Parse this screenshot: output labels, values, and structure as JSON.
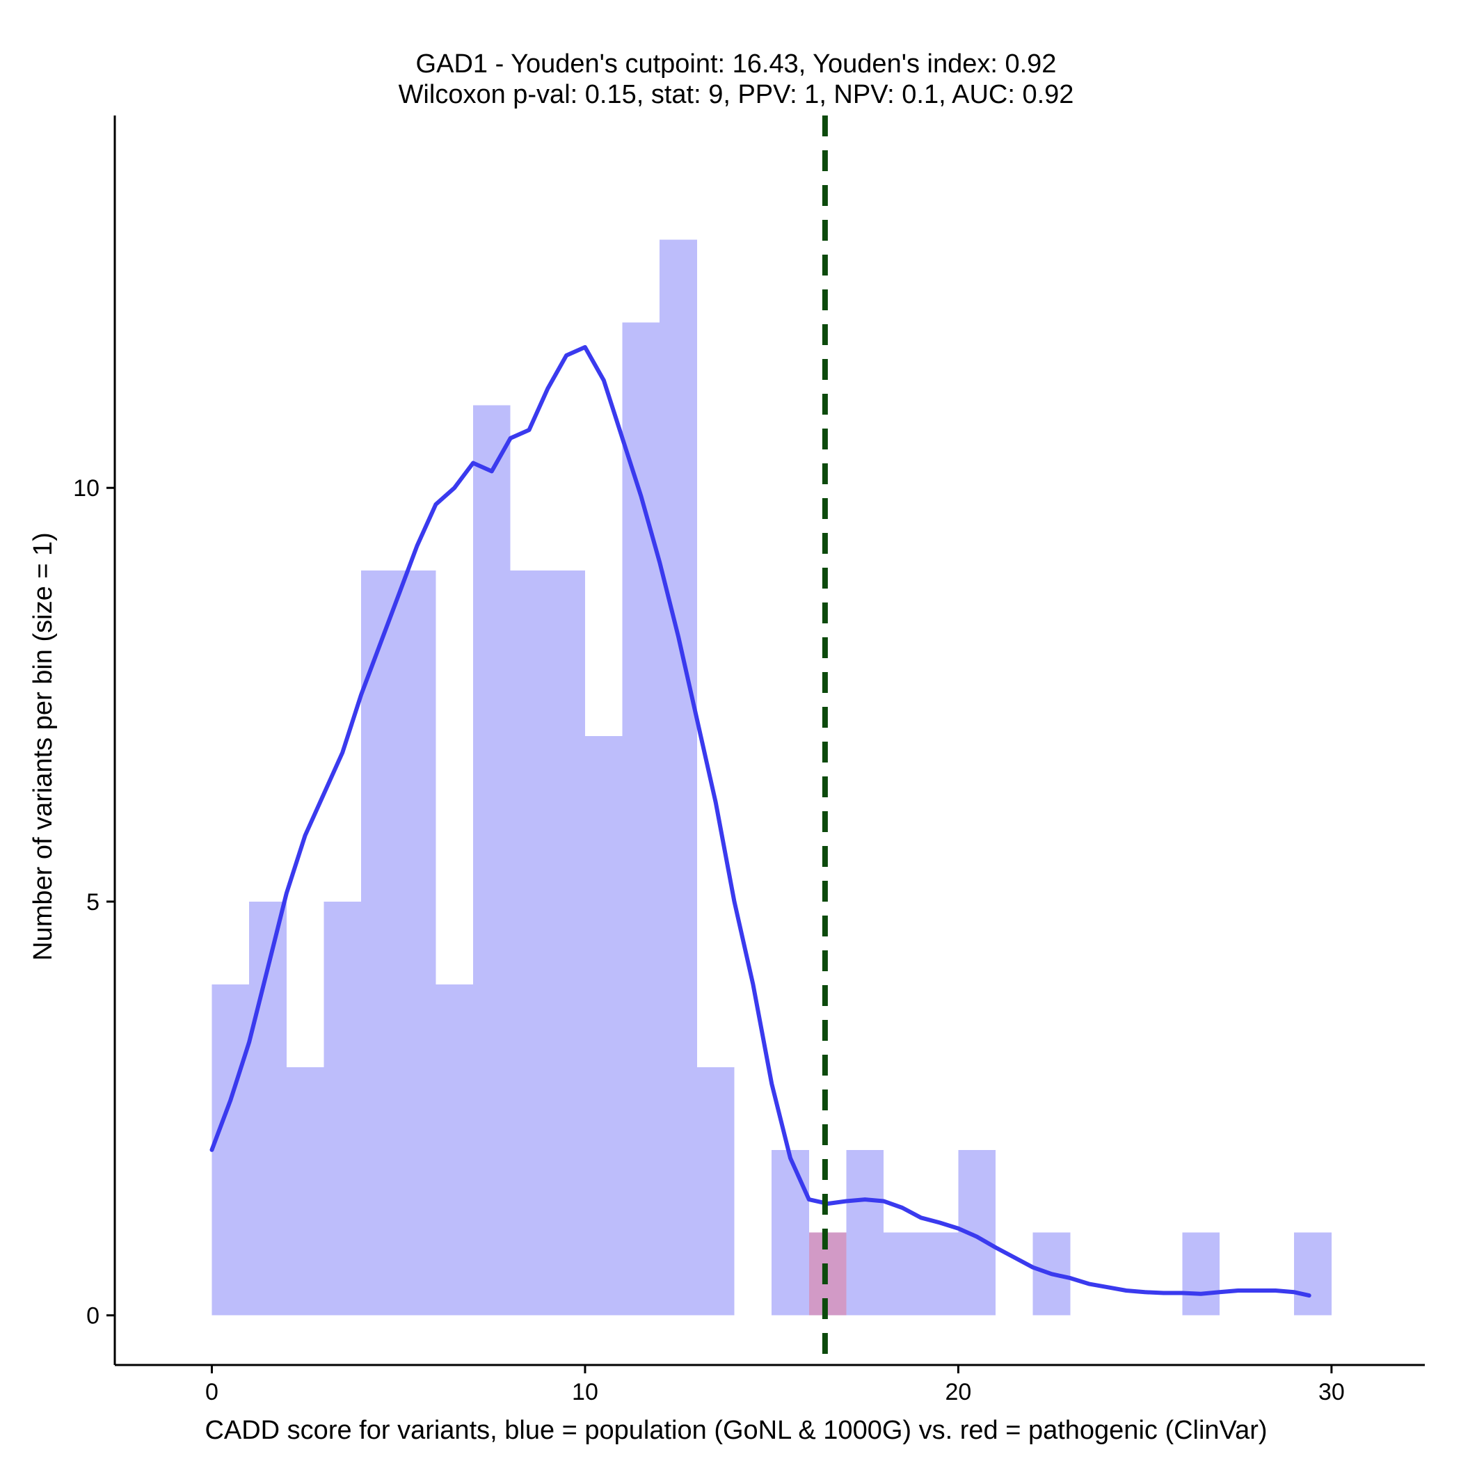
{
  "chart_data": {
    "type": "histogram",
    "title_line1": "GAD1 - Youden's cutpoint: 16.43, Youden's index: 0.92",
    "title_line2": "Wilcoxon p-val: 0.15, stat: 9, PPV: 1, NPV: 0.1, AUC: 0.92",
    "xlabel": "CADD score for variants, blue = population (GoNL & 1000G) vs. red = pathogenic (ClinVar)",
    "ylabel": "Number of variants per bin (size = 1)",
    "xlim": [
      -2.6,
      32.5
    ],
    "ylim": [
      -0.6,
      14.5
    ],
    "x_ticks": [
      0,
      10,
      20,
      30
    ],
    "x_tick_labels": [
      "0",
      "10",
      "20",
      "30"
    ],
    "y_ticks": [
      0,
      5,
      10
    ],
    "y_tick_labels": [
      "0",
      "5",
      "10"
    ],
    "bin_width": 1,
    "colors": {
      "population": "#bdbdfb",
      "pathogenic": "#d29ac6",
      "density": "#3a3aee",
      "cutpoint": "#0c4a0c",
      "axis": "#000000"
    },
    "series": [
      {
        "name": "population (GoNL & 1000G)",
        "bin_starts": [
          0,
          1,
          2,
          3,
          4,
          5,
          6,
          7,
          8,
          9,
          10,
          11,
          12,
          13,
          14,
          15,
          16,
          17,
          18,
          19,
          20,
          21,
          22,
          23,
          24,
          25,
          26,
          27,
          28,
          29
        ],
        "values": [
          4,
          5,
          3,
          5,
          9,
          9,
          4,
          11,
          9,
          9,
          7,
          12,
          13,
          3,
          0,
          2,
          0,
          2,
          1,
          1,
          2,
          0,
          1,
          0,
          0,
          0,
          1,
          0,
          0,
          1
        ]
      },
      {
        "name": "pathogenic (ClinVar)",
        "bin_starts": [
          16
        ],
        "values": [
          1
        ]
      }
    ],
    "density_curve": {
      "x": [
        0,
        0.5,
        1,
        1.5,
        2,
        2.5,
        3,
        3.5,
        4,
        4.5,
        5,
        5.5,
        6,
        6.5,
        7,
        7.5,
        8,
        8.5,
        9,
        9.5,
        10,
        10.5,
        11,
        11.5,
        12,
        12.5,
        13,
        13.5,
        14,
        14.5,
        15,
        15.5,
        16,
        16.5,
        17,
        17.5,
        18,
        18.5,
        19,
        19.5,
        20,
        20.5,
        21,
        21.5,
        22,
        22.5,
        23,
        23.5,
        24,
        24.5,
        25,
        25.5,
        26,
        26.5,
        27,
        27.5,
        28,
        28.5,
        29,
        29.4
      ],
      "y": [
        2.0,
        2.6,
        3.3,
        4.2,
        5.1,
        5.8,
        6.3,
        6.8,
        7.5,
        8.1,
        8.7,
        9.3,
        9.8,
        10.0,
        10.3,
        10.2,
        10.6,
        10.7,
        11.2,
        11.6,
        11.7,
        11.3,
        10.6,
        9.9,
        9.1,
        8.2,
        7.2,
        6.2,
        5.0,
        4.0,
        2.8,
        1.9,
        1.4,
        1.35,
        1.38,
        1.4,
        1.38,
        1.3,
        1.18,
        1.12,
        1.05,
        0.95,
        0.82,
        0.7,
        0.58,
        0.5,
        0.45,
        0.38,
        0.34,
        0.3,
        0.28,
        0.27,
        0.27,
        0.26,
        0.28,
        0.3,
        0.3,
        0.3,
        0.28,
        0.24
      ]
    },
    "cutpoint": 16.43
  }
}
